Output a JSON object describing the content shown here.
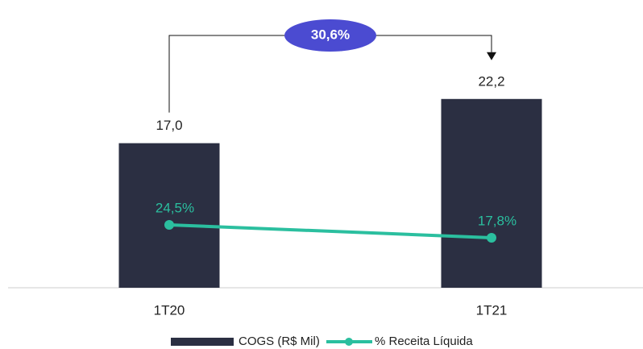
{
  "chart_data": {
    "type": "bar",
    "categories": [
      "1T20",
      "1T21"
    ],
    "series": [
      {
        "name": "COGS (R$ Mil)",
        "color": "#2b2f42",
        "values": [
          17.0,
          22.2
        ],
        "value_labels": [
          "17,0",
          "22,2"
        ]
      },
      {
        "name": "% Receita Líquida",
        "type": "line",
        "axis": "y2",
        "color": "#2bbf9f",
        "values": [
          24.5,
          17.8
        ],
        "value_labels": [
          "24,5%",
          "17,8%"
        ]
      }
    ],
    "annotation": "30,6%",
    "annotation_color": "#4b4bd1",
    "ylim": [
      0,
      30
    ],
    "y2lim": [
      0,
      100
    ],
    "legend": "bottom"
  }
}
